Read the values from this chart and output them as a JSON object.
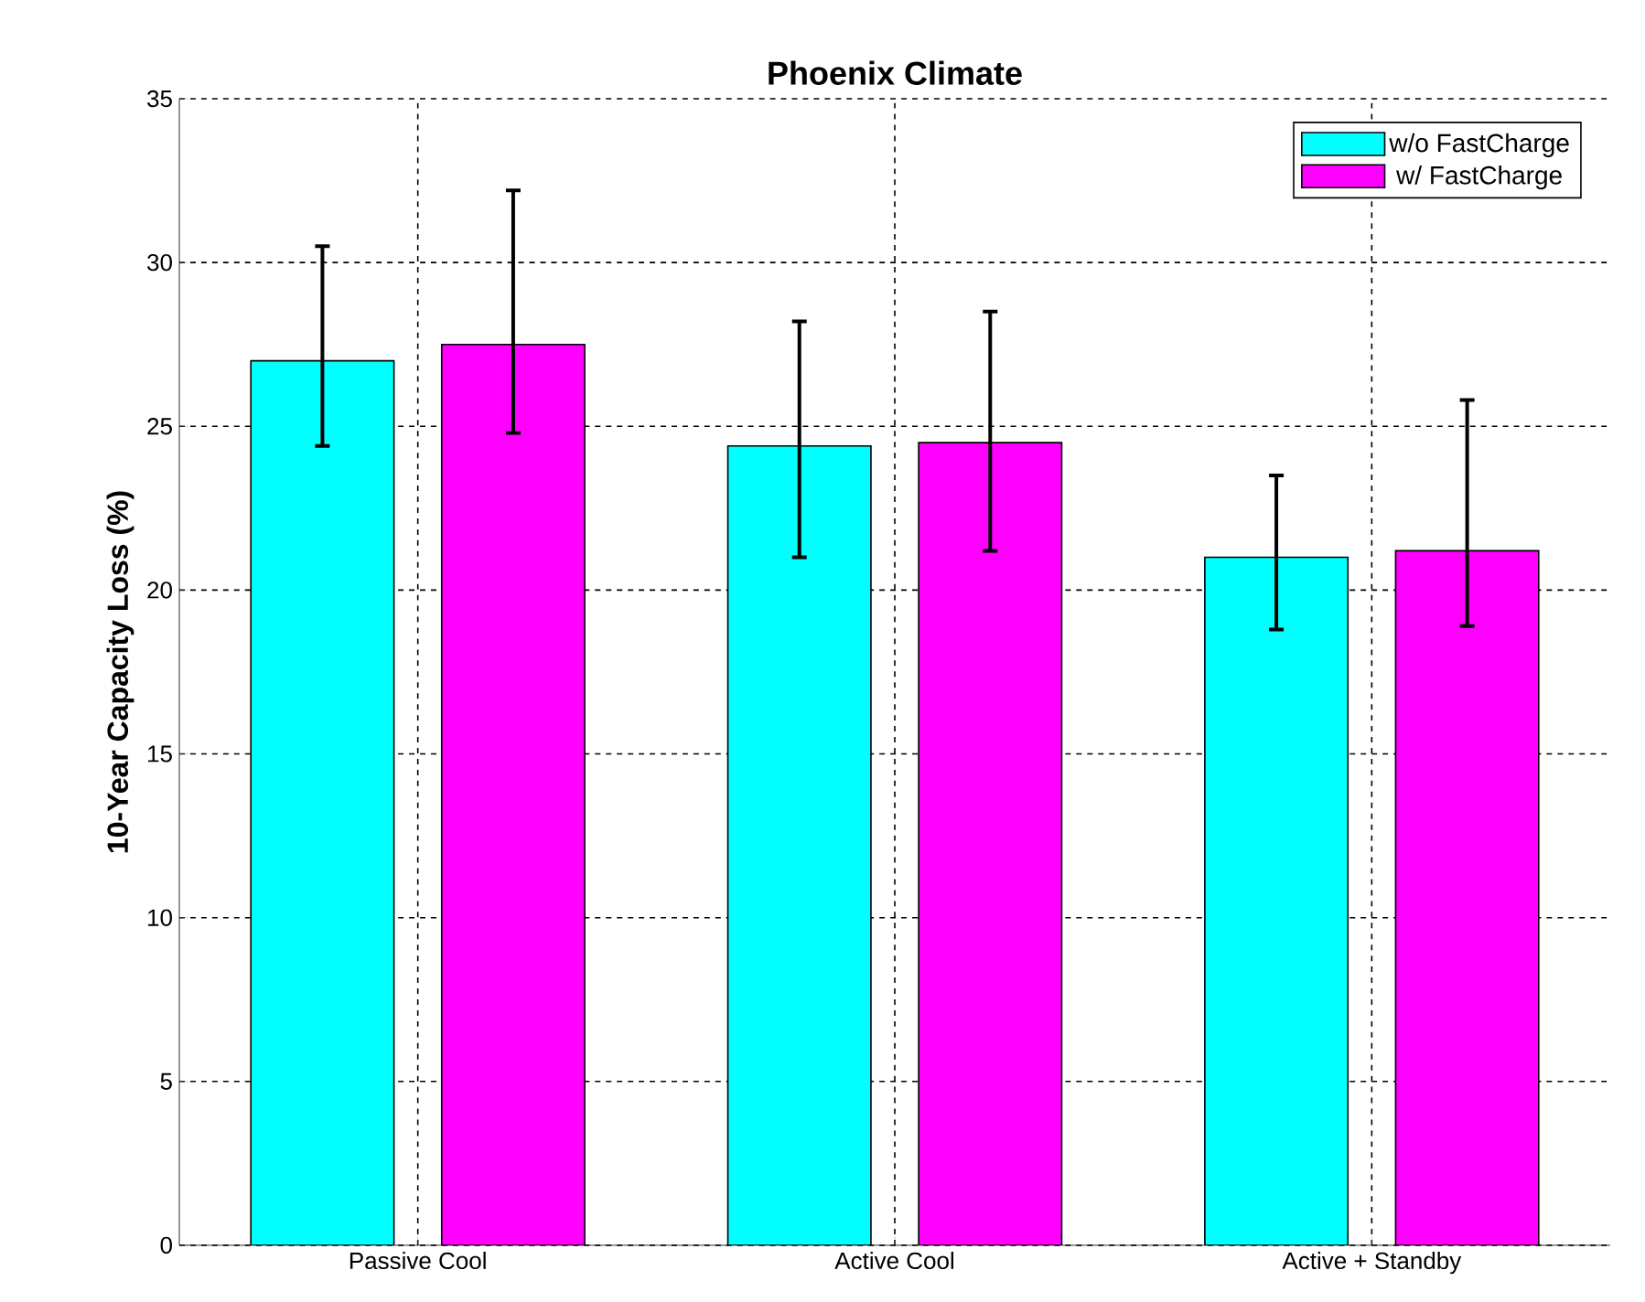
{
  "chart_data": {
    "type": "bar",
    "title": "Phoenix Climate",
    "ylabel": "10-Year Capacity Loss (%)",
    "categories": [
      "Passive Cool",
      "Active Cool",
      "Active + Standby"
    ],
    "series": [
      {
        "name": "w/o FastCharge",
        "color": "#00ffff",
        "values": [
          27.0,
          24.4,
          21.0
        ],
        "errors": [
          [
            24.4,
            30.5
          ],
          [
            21.0,
            28.2
          ],
          [
            18.8,
            23.5
          ]
        ]
      },
      {
        "name": "w/ FastCharge",
        "color": "#ff00ff",
        "values": [
          27.5,
          24.5,
          21.2
        ],
        "errors": [
          [
            24.8,
            32.2
          ],
          [
            21.2,
            28.5
          ],
          [
            18.9,
            25.8
          ]
        ]
      }
    ],
    "ylim": [
      0,
      35
    ],
    "yticks": [
      0,
      5,
      10,
      15,
      20,
      25,
      30,
      35
    ],
    "grid": true,
    "legend": "top right"
  }
}
